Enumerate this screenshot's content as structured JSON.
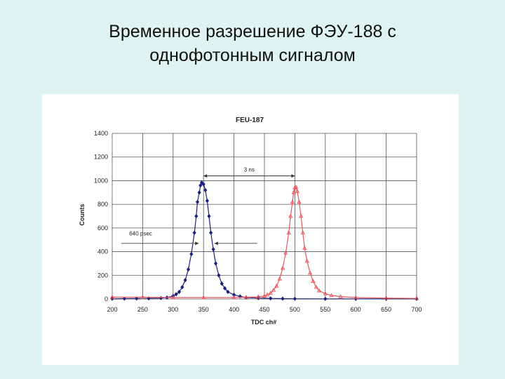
{
  "slide": {
    "title_line1": "Временное разрешение ФЭУ-188 с",
    "title_line2": "однофотонным сигналом"
  },
  "chart_data": {
    "type": "scatter",
    "title": "FEU-187",
    "xlabel": "TDC ch#",
    "ylabel": "Counts",
    "xlim": [
      200,
      700
    ],
    "ylim": [
      0,
      1400
    ],
    "xticks": [
      200,
      250,
      300,
      350,
      400,
      450,
      500,
      550,
      600,
      650,
      700
    ],
    "yticks": [
      0,
      200,
      400,
      600,
      800,
      1000,
      1200,
      1400
    ],
    "grid": true,
    "series": [
      {
        "color": "#1a1f7a",
        "marker": "diamond",
        "points": [
          [
            200,
            2
          ],
          [
            220,
            3
          ],
          [
            240,
            4
          ],
          [
            260,
            5
          ],
          [
            280,
            8
          ],
          [
            290,
            12
          ],
          [
            300,
            25
          ],
          [
            305,
            40
          ],
          [
            310,
            60
          ],
          [
            315,
            100
          ],
          [
            320,
            160
          ],
          [
            325,
            250
          ],
          [
            330,
            380
          ],
          [
            335,
            560
          ],
          [
            338,
            700
          ],
          [
            340,
            820
          ],
          [
            343,
            900
          ],
          [
            345,
            960
          ],
          [
            347,
            985
          ],
          [
            350,
            970
          ],
          [
            353,
            920
          ],
          [
            356,
            830
          ],
          [
            359,
            700
          ],
          [
            362,
            560
          ],
          [
            366,
            420
          ],
          [
            370,
            300
          ],
          [
            375,
            200
          ],
          [
            380,
            130
          ],
          [
            385,
            90
          ],
          [
            390,
            60
          ],
          [
            400,
            35
          ],
          [
            410,
            22
          ],
          [
            420,
            12
          ],
          [
            440,
            8
          ],
          [
            460,
            5
          ],
          [
            480,
            3
          ],
          [
            500,
            2
          ],
          [
            550,
            1
          ],
          [
            600,
            1
          ],
          [
            650,
            1
          ],
          [
            700,
            1
          ]
        ]
      },
      {
        "color": "#e8565c",
        "marker": "triangle",
        "points": [
          [
            200,
            15
          ],
          [
            250,
            15
          ],
          [
            300,
            12
          ],
          [
            350,
            12
          ],
          [
            400,
            12
          ],
          [
            420,
            14
          ],
          [
            440,
            18
          ],
          [
            450,
            25
          ],
          [
            455,
            35
          ],
          [
            460,
            50
          ],
          [
            465,
            75
          ],
          [
            470,
            110
          ],
          [
            475,
            170
          ],
          [
            480,
            260
          ],
          [
            485,
            390
          ],
          [
            490,
            560
          ],
          [
            493,
            700
          ],
          [
            496,
            820
          ],
          [
            498,
            900
          ],
          [
            500,
            940
          ],
          [
            502,
            945
          ],
          [
            504,
            910
          ],
          [
            507,
            820
          ],
          [
            510,
            700
          ],
          [
            513,
            560
          ],
          [
            516,
            430
          ],
          [
            520,
            320
          ],
          [
            525,
            220
          ],
          [
            530,
            150
          ],
          [
            535,
            100
          ],
          [
            540,
            70
          ],
          [
            550,
            45
          ],
          [
            560,
            30
          ],
          [
            575,
            20
          ],
          [
            600,
            12
          ],
          [
            650,
            8
          ],
          [
            700,
            5
          ]
        ]
      }
    ],
    "annotations": [
      {
        "text": "3 ns",
        "type": "double-arrow",
        "x_from": 350,
        "x_to": 500,
        "y": 1040
      },
      {
        "text": "640 psec",
        "type": "pointing-arrows",
        "x_left": 342,
        "x_right": 368,
        "y": 470,
        "text_x": 228,
        "text_y": 555
      }
    ]
  }
}
